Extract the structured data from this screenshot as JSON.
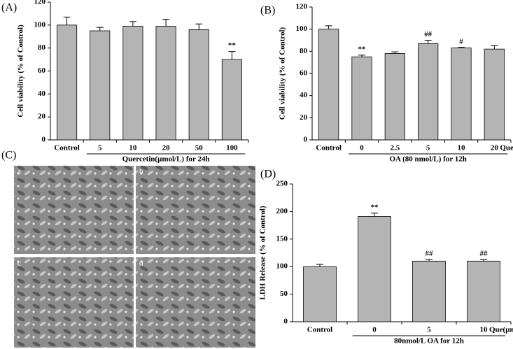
{
  "chart_data": [
    {
      "type": "bar",
      "panel_label": "(A)",
      "categories": [
        "Control",
        "5",
        "10",
        "20",
        "50",
        "100"
      ],
      "values": [
        100,
        95,
        99,
        99,
        96,
        70
      ],
      "errors": [
        7,
        3,
        4,
        6,
        5,
        7
      ],
      "annotations": [
        null,
        null,
        null,
        null,
        null,
        "**"
      ],
      "y_label": "Cell viability (% of Control)",
      "x_label": "Quercetin(μmol/L) for 24h",
      "color": "#b4b4b4",
      "ylim": [
        0,
        120
      ],
      "yticks": [
        0,
        20,
        40,
        60,
        80,
        100,
        120
      ]
    },
    {
      "type": "bar",
      "panel_label": "(B)",
      "categories": [
        "Control",
        "0",
        "2.5",
        "5",
        "10",
        "20"
      ],
      "values": [
        100,
        75,
        78,
        87,
        83,
        82
      ],
      "errors": [
        3,
        1.5,
        1.5,
        3,
        0.5,
        3
      ],
      "annotations": [
        null,
        "**",
        null,
        "##",
        "#",
        null
      ],
      "y_label": "Cell viability (% of Control)",
      "x_label": "OA (80 nmol/L) for 12h",
      "x_unit": "Que(μmol/L)",
      "color": "#b4b4b4",
      "ylim": [
        0,
        120
      ],
      "yticks": [
        0,
        20,
        40,
        60,
        80,
        100,
        120
      ]
    },
    {
      "type": "bar",
      "panel_label": "(D)",
      "categories": [
        "Control",
        "0",
        "5",
        "10"
      ],
      "values": [
        100,
        191,
        110,
        110
      ],
      "errors": [
        4,
        6,
        3,
        3
      ],
      "annotations": [
        null,
        "**",
        "##",
        "##"
      ],
      "y_label": "LDH Release (% of Control)",
      "x_label": "80nmol/L OA for 12h",
      "x_unit": "Que(μmol/L)",
      "color": "#b4b4b4",
      "ylim": [
        0,
        250
      ],
      "yticks": [
        0,
        50,
        100,
        150,
        200,
        250
      ]
    }
  ],
  "image_panel": {
    "panel_label": "(C)",
    "subpanels": [
      "a",
      "b",
      "c",
      "d"
    ]
  }
}
